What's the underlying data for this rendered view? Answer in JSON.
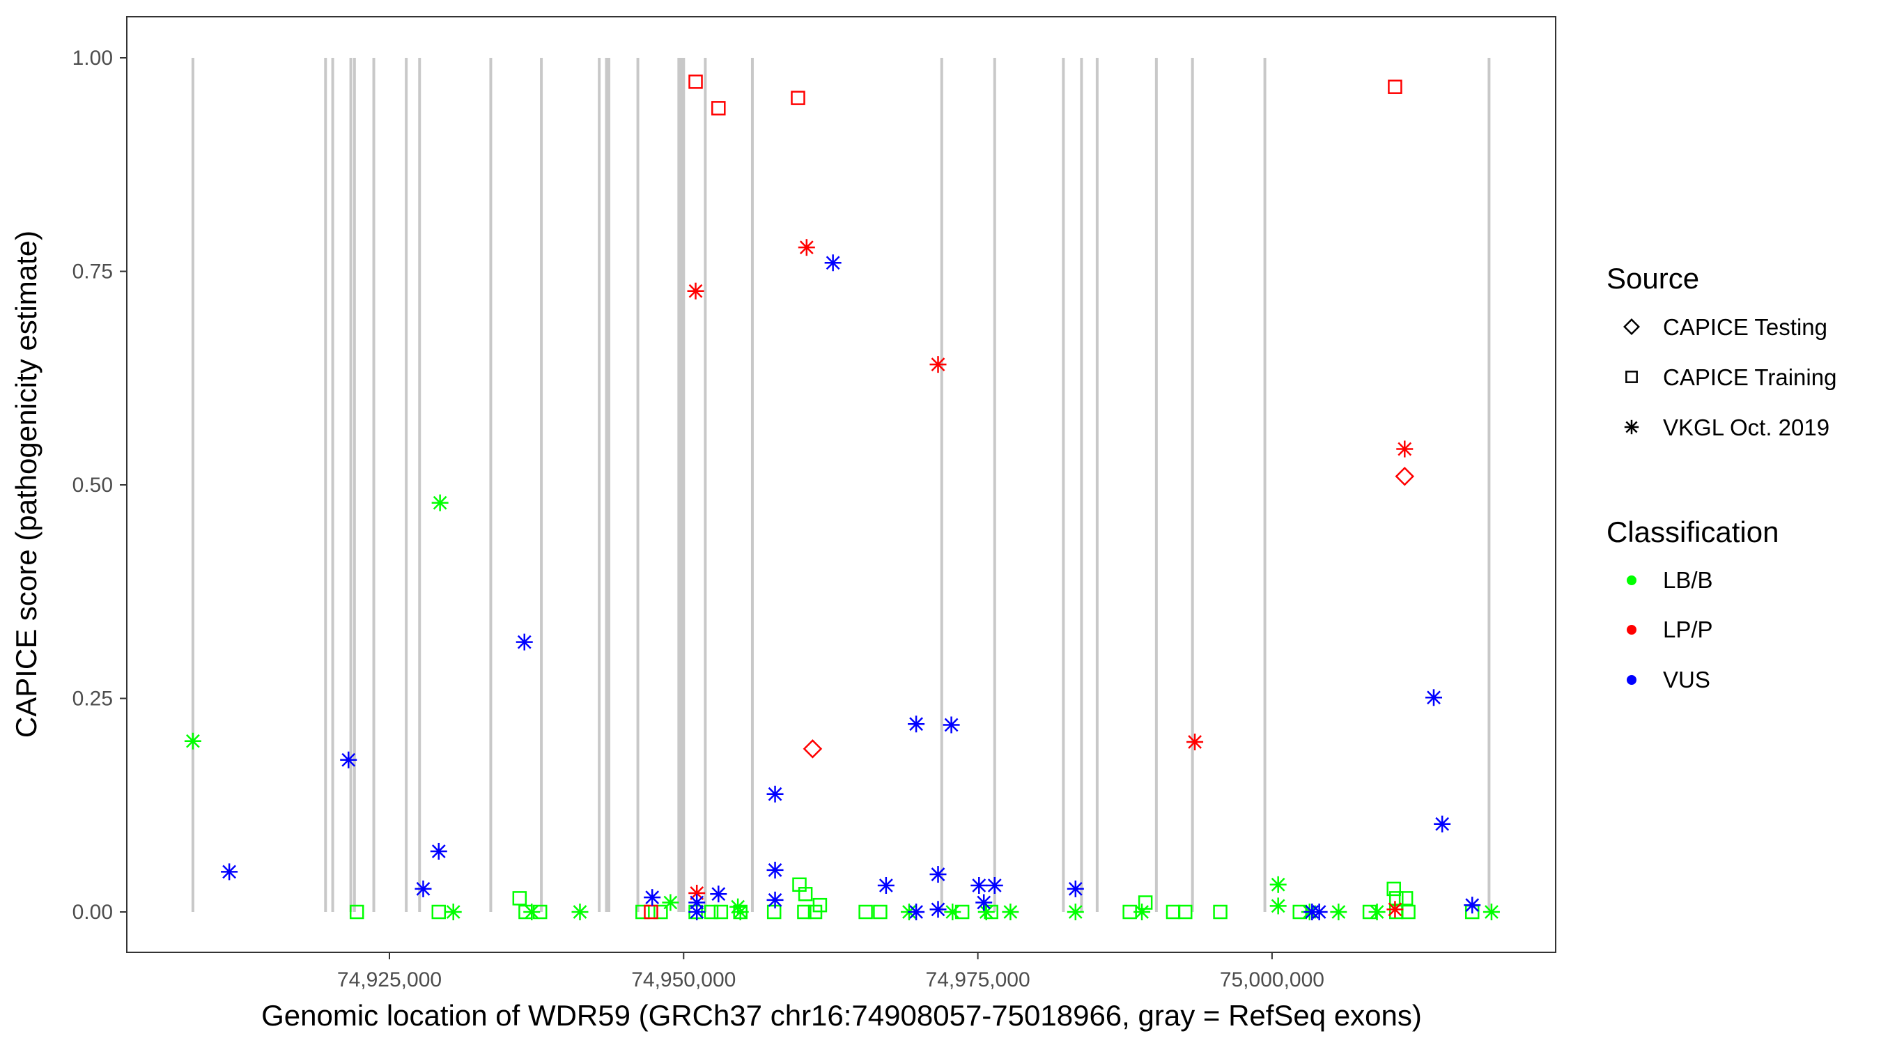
{
  "chart_data": {
    "type": "scatter",
    "xlabel": "Genomic location of WDR59 (GRCh37 chr16:74908057-75018966, gray = RefSeq exons)",
    "ylabel": "CAPICE score (pathogenicity estimate)",
    "xlim": [
      74902600,
      75024100
    ],
    "ylim": [
      -0.05,
      1.05
    ],
    "x_ticks": [
      74925000,
      74950000,
      74975000,
      75000000
    ],
    "x_tick_labels": [
      "74,925,000",
      "74,950,000",
      "74,975,000",
      "75,000,000"
    ],
    "y_ticks": [
      0,
      0.25,
      0.5,
      0.75,
      1.0
    ],
    "y_tick_labels": [
      "0.00",
      "0.25",
      "0.50",
      "0.75",
      "1.00"
    ],
    "grid": false,
    "exon_color": "#c8c8c8",
    "exons": [
      74908300,
      74919570,
      74920180,
      74921720,
      74922030,
      74923670,
      74926430,
      74927560,
      74933610,
      74937910,
      74942830,
      74943440,
      74943650,
      74946110,
      74949590,
      74949800,
      74950000,
      74951840,
      74955840,
      74971930,
      74976430,
      74982270,
      74983810,
      74985140,
      74990170,
      74993240,
      74999390,
      75018440
    ],
    "legend": {
      "position": "right",
      "source_title": "Source",
      "sources": [
        {
          "key": "testing",
          "label": "CAPICE Testing",
          "shape": "diamond"
        },
        {
          "key": "training",
          "label": "CAPICE Training",
          "shape": "square"
        },
        {
          "key": "vkgl",
          "label": "VKGL Oct. 2019",
          "shape": "asterisk"
        }
      ],
      "class_title": "Classification",
      "classes": [
        {
          "key": "LB/B",
          "label": "LB/B",
          "color": "#00ff00"
        },
        {
          "key": "LP/P",
          "label": "LP/P",
          "color": "#ff0000"
        },
        {
          "key": "VUS",
          "label": "VUS",
          "color": "#0000ff"
        }
      ]
    },
    "series": [
      {
        "source": "vkgl",
        "class": "LB/B",
        "points": [
          [
            74908300,
            0.2
          ],
          [
            74929300,
            0.479
          ],
          [
            74930430,
            0
          ],
          [
            74937090,
            0
          ],
          [
            74941190,
            0
          ],
          [
            74948880,
            0.011
          ],
          [
            74954610,
            0.006
          ],
          [
            74954820,
            0
          ],
          [
            74969160,
            0
          ],
          [
            74972850,
            0
          ],
          [
            74975720,
            0
          ],
          [
            74977770,
            0
          ],
          [
            74983300,
            0
          ],
          [
            74988940,
            0
          ],
          [
            75000520,
            0.032
          ],
          [
            75000520,
            0.007
          ],
          [
            75003190,
            0
          ],
          [
            75005650,
            0
          ],
          [
            75008920,
            0
          ],
          [
            75018650,
            0
          ]
        ]
      },
      {
        "source": "training",
        "class": "LB/B",
        "points": [
          [
            74922230,
            0
          ],
          [
            74929190,
            0
          ],
          [
            74936060,
            0.016
          ],
          [
            74936570,
            0
          ],
          [
            74937800,
            0
          ],
          [
            74946510,
            0
          ],
          [
            74948050,
            0
          ],
          [
            74951020,
            0
          ],
          [
            74952350,
            0
          ],
          [
            74953170,
            0
          ],
          [
            74954820,
            0
          ],
          [
            74957690,
            0
          ],
          [
            74959840,
            0.032
          ],
          [
            74960350,
            0.021
          ],
          [
            74960250,
            0
          ],
          [
            74961170,
            0
          ],
          [
            74961580,
            0.008
          ],
          [
            74965470,
            0
          ],
          [
            74966700,
            0
          ],
          [
            74973670,
            0
          ],
          [
            74976130,
            0
          ],
          [
            74987910,
            0
          ],
          [
            74989240,
            0.011
          ],
          [
            74991600,
            0
          ],
          [
            74992620,
            0
          ],
          [
            74995600,
            0
          ],
          [
            75002360,
            0
          ],
          [
            75010350,
            0.027
          ],
          [
            75010560,
            0.016
          ],
          [
            75011380,
            0.016
          ],
          [
            75008300,
            0
          ],
          [
            75010560,
            0
          ],
          [
            75011580,
            0
          ],
          [
            75017010,
            0
          ]
        ]
      },
      {
        "source": "training",
        "class": "LP/P",
        "points": [
          [
            74951020,
            0.972
          ],
          [
            74952960,
            0.941
          ],
          [
            74959720,
            0.953
          ],
          [
            75010450,
            0.966
          ],
          [
            74947230,
            0
          ]
        ]
      },
      {
        "source": "vkgl",
        "class": "LP/P",
        "points": [
          [
            74951020,
            0.727
          ],
          [
            74960450,
            0.778
          ],
          [
            74971620,
            0.641
          ],
          [
            74993440,
            0.199
          ],
          [
            75011270,
            0.542
          ],
          [
            74951120,
            0.022
          ],
          [
            75010450,
            0.003
          ]
        ]
      },
      {
        "source": "testing",
        "class": "LP/P",
        "points": [
          [
            74960960,
            0.191
          ],
          [
            75011270,
            0.51
          ]
        ]
      },
      {
        "source": "vkgl",
        "class": "VUS",
        "points": [
          [
            74911390,
            0.047
          ],
          [
            74921520,
            0.178
          ],
          [
            74927870,
            0.027
          ],
          [
            74929190,
            0.071
          ],
          [
            74936470,
            0.316
          ],
          [
            74947330,
            0.017
          ],
          [
            74951120,
            0.011
          ],
          [
            74951120,
            0
          ],
          [
            74952960,
            0.021
          ],
          [
            74957770,
            0.138
          ],
          [
            74957770,
            0.049
          ],
          [
            74957770,
            0.014
          ],
          [
            74962690,
            0.76
          ],
          [
            74967200,
            0.031
          ],
          [
            74969760,
            0.22
          ],
          [
            74969760,
            0
          ],
          [
            74971620,
            0.044
          ],
          [
            74971620,
            0.003
          ],
          [
            74972750,
            0.219
          ],
          [
            74975100,
            0.031
          ],
          [
            74975510,
            0.011
          ],
          [
            74976430,
            0.031
          ],
          [
            74983300,
            0.027
          ],
          [
            75003400,
            0
          ],
          [
            75004010,
            0
          ],
          [
            75013740,
            0.251
          ],
          [
            75014460,
            0.103
          ],
          [
            75017010,
            0.008
          ]
        ]
      }
    ]
  }
}
